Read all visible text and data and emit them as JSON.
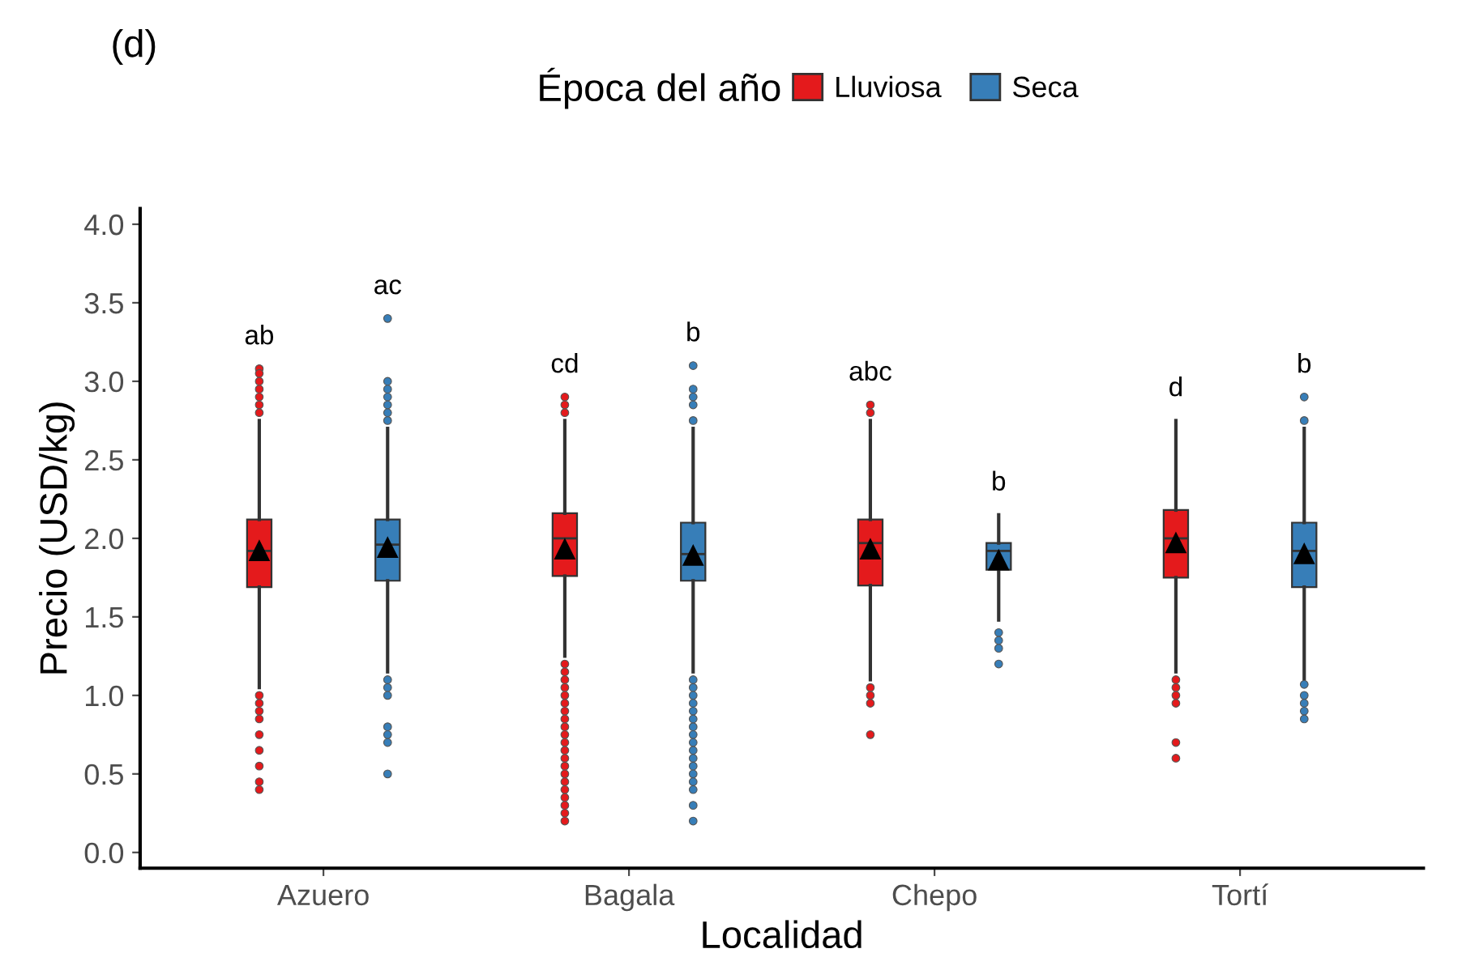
{
  "chart_data": {
    "type": "box",
    "title": "(d)",
    "xlabel": "Localidad",
    "ylabel": "Precio (USD/kg)",
    "legend_title": "Época del año",
    "categories": [
      "Azuero",
      "Bagala",
      "Chepo",
      "Tortí"
    ],
    "series": [
      {
        "name": "Lluviosa",
        "color": "#e41a1c",
        "boxes": [
          {
            "low": 1.05,
            "q1": 1.69,
            "median": 1.92,
            "q3": 2.12,
            "high": 2.75,
            "mean": 1.92,
            "outliers": [
              3.08,
              3.05,
              3.0,
              2.95,
              2.9,
              2.85,
              2.8,
              1.0,
              0.95,
              0.9,
              0.85,
              0.75,
              0.65,
              0.55,
              0.45,
              0.4
            ]
          },
          {
            "low": 1.25,
            "q1": 1.76,
            "median": 2.0,
            "q3": 2.16,
            "high": 2.75,
            "mean": 1.93,
            "outliers": [
              2.9,
              2.85,
              2.8,
              1.2,
              1.15,
              1.1,
              1.05,
              1.0,
              0.95,
              0.9,
              0.85,
              0.8,
              0.75,
              0.7,
              0.65,
              0.6,
              0.55,
              0.5,
              0.45,
              0.4,
              0.35,
              0.3,
              0.25,
              0.2
            ]
          },
          {
            "low": 1.1,
            "q1": 1.7,
            "median": 1.97,
            "q3": 2.12,
            "high": 2.75,
            "mean": 1.93,
            "outliers": [
              2.85,
              2.8,
              1.05,
              1.0,
              0.95,
              0.75
            ]
          },
          {
            "low": 1.15,
            "q1": 1.75,
            "median": 2.0,
            "q3": 2.18,
            "high": 2.75,
            "mean": 1.97,
            "outliers": [
              1.1,
              1.05,
              1.0,
              0.95,
              0.7,
              0.6
            ]
          }
        ]
      },
      {
        "name": "Seca",
        "color": "#377eb8",
        "boxes": [
          {
            "low": 1.15,
            "q1": 1.73,
            "median": 1.96,
            "q3": 2.12,
            "high": 2.7,
            "mean": 1.94,
            "outliers": [
              3.4,
              3.0,
              2.95,
              2.9,
              2.85,
              2.8,
              2.75,
              1.1,
              1.05,
              1.0,
              0.8,
              0.75,
              0.7,
              0.5
            ]
          },
          {
            "low": 1.15,
            "q1": 1.73,
            "median": 1.9,
            "q3": 2.1,
            "high": 2.7,
            "mean": 1.89,
            "outliers": [
              3.1,
              2.95,
              2.9,
              2.85,
              2.75,
              1.1,
              1.05,
              1.0,
              0.95,
              0.9,
              0.85,
              0.8,
              0.75,
              0.7,
              0.65,
              0.6,
              0.55,
              0.5,
              0.45,
              0.4,
              0.3,
              0.2
            ]
          },
          {
            "low": 1.48,
            "q1": 1.8,
            "median": 1.92,
            "q3": 1.97,
            "high": 2.15,
            "mean": 1.86,
            "outliers": [
              1.4,
              1.35,
              1.3,
              1.2
            ]
          },
          {
            "low": 1.1,
            "q1": 1.69,
            "median": 1.92,
            "q3": 2.1,
            "high": 2.7,
            "mean": 1.9,
            "outliers": [
              2.9,
              2.75,
              1.07,
              1.0,
              0.95,
              0.9,
              0.85
            ]
          }
        ]
      }
    ],
    "annotations": [
      "ab",
      "cd",
      "abc",
      "d",
      "ac",
      "b",
      "b",
      "b"
    ],
    "ylim": [
      -0.1,
      4.1
    ],
    "yticks": [
      {
        "value": 0,
        "label": "0.0"
      },
      {
        "value": 0.5,
        "label": "0.5"
      },
      {
        "value": 1,
        "label": "1.0"
      },
      {
        "value": 1.5,
        "label": "1.5"
      },
      {
        "value": 2,
        "label": "2.0"
      },
      {
        "value": 2.5,
        "label": "2.5"
      },
      {
        "value": 3,
        "label": "3.0"
      },
      {
        "value": 3.5,
        "label": "3.5"
      },
      {
        "value": 4,
        "label": "4.0"
      }
    ],
    "grid": false,
    "legend": "top"
  }
}
